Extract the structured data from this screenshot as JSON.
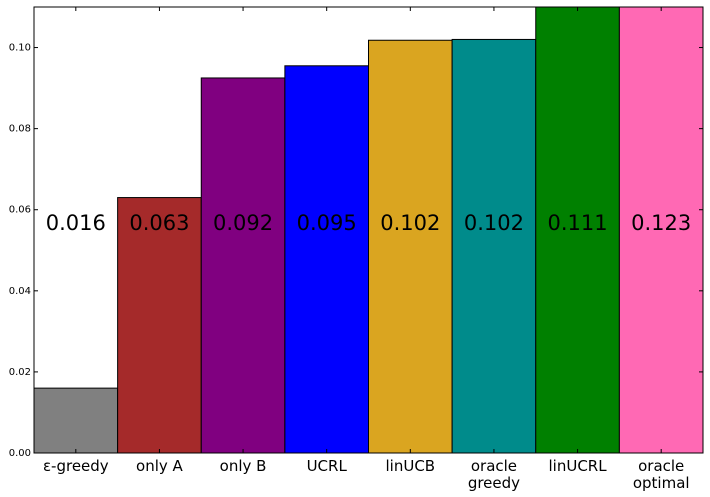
{
  "chart_data": {
    "type": "bar",
    "categories": [
      [
        "ε-greedy"
      ],
      [
        "only A"
      ],
      [
        "only B"
      ],
      [
        "UCRL"
      ],
      [
        "linUCB"
      ],
      [
        "oracle",
        "greedy"
      ],
      [
        "linUCRL"
      ],
      [
        "oracle",
        "optimal"
      ]
    ],
    "values": [
      0.016,
      0.063,
      0.0925,
      0.0955,
      0.1018,
      0.102,
      0.111,
      0.123
    ],
    "value_labels": [
      "0.016",
      "0.063",
      "0.092",
      "0.095",
      "0.102",
      "0.102",
      "0.111",
      "0.123"
    ],
    "colors": [
      "#808080",
      "#a52a2a",
      "#800080",
      "#0000ff",
      "#daa520",
      "#008b8b",
      "#008000",
      "#ff69b4"
    ],
    "yticks": [
      "0.00",
      "0.02",
      "0.04",
      "0.06",
      "0.08",
      "0.10"
    ],
    "ytick_values": [
      0.0,
      0.02,
      0.04,
      0.06,
      0.08,
      0.1
    ],
    "ylim": [
      0,
      0.11
    ],
    "value_label_y": 0.056,
    "grid": false,
    "legend": "none",
    "title": "",
    "xlabel": "",
    "ylabel": ""
  }
}
